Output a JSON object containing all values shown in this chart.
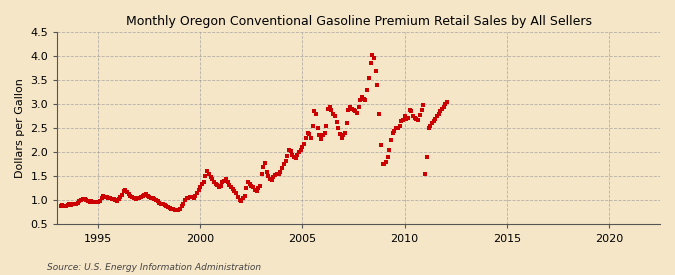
{
  "title": "Monthly Oregon Conventional Gasoline Premium Retail Sales by All Sellers",
  "ylabel": "Dollars per Gallon",
  "source": "Source: U.S. Energy Information Administration",
  "background_color": "#f5e6c8",
  "plot_bg_color": "#f5e6c8",
  "dot_color": "#cc0000",
  "ylim": [
    0.5,
    4.5
  ],
  "xlim_start": 1993.0,
  "xlim_end": 2022.5,
  "yticks": [
    0.5,
    1.0,
    1.5,
    2.0,
    2.5,
    3.0,
    3.5,
    4.0,
    4.5
  ],
  "xticks": [
    1995,
    2000,
    2005,
    2010,
    2015,
    2020
  ],
  "data": [
    [
      1993.17,
      0.88
    ],
    [
      1993.25,
      0.9
    ],
    [
      1993.33,
      0.89
    ],
    [
      1993.42,
      0.88
    ],
    [
      1993.5,
      0.91
    ],
    [
      1993.58,
      0.93
    ],
    [
      1993.67,
      0.9
    ],
    [
      1993.75,
      0.92
    ],
    [
      1993.83,
      0.93
    ],
    [
      1993.92,
      0.93
    ],
    [
      1994.0,
      0.95
    ],
    [
      1994.08,
      0.98
    ],
    [
      1994.17,
      1.01
    ],
    [
      1994.25,
      1.02
    ],
    [
      1994.33,
      1.03
    ],
    [
      1994.42,
      1.01
    ],
    [
      1994.5,
      0.99
    ],
    [
      1994.58,
      0.97
    ],
    [
      1994.67,
      0.98
    ],
    [
      1994.75,
      0.97
    ],
    [
      1994.83,
      0.97
    ],
    [
      1994.92,
      0.96
    ],
    [
      1995.0,
      0.96
    ],
    [
      1995.08,
      0.99
    ],
    [
      1995.17,
      1.05
    ],
    [
      1995.25,
      1.1
    ],
    [
      1995.33,
      1.08
    ],
    [
      1995.42,
      1.07
    ],
    [
      1995.5,
      1.06
    ],
    [
      1995.58,
      1.04
    ],
    [
      1995.67,
      1.03
    ],
    [
      1995.75,
      1.02
    ],
    [
      1995.83,
      1.0
    ],
    [
      1995.92,
      0.99
    ],
    [
      1996.0,
      1.02
    ],
    [
      1996.08,
      1.08
    ],
    [
      1996.17,
      1.12
    ],
    [
      1996.25,
      1.2
    ],
    [
      1996.33,
      1.22
    ],
    [
      1996.42,
      1.18
    ],
    [
      1996.5,
      1.13
    ],
    [
      1996.58,
      1.09
    ],
    [
      1996.67,
      1.08
    ],
    [
      1996.75,
      1.05
    ],
    [
      1996.83,
      1.03
    ],
    [
      1996.92,
      1.05
    ],
    [
      1997.0,
      1.05
    ],
    [
      1997.08,
      1.07
    ],
    [
      1997.17,
      1.1
    ],
    [
      1997.25,
      1.12
    ],
    [
      1997.33,
      1.13
    ],
    [
      1997.42,
      1.1
    ],
    [
      1997.5,
      1.08
    ],
    [
      1997.58,
      1.06
    ],
    [
      1997.67,
      1.05
    ],
    [
      1997.75,
      1.03
    ],
    [
      1997.83,
      1.0
    ],
    [
      1997.92,
      0.98
    ],
    [
      1998.0,
      0.95
    ],
    [
      1998.08,
      0.93
    ],
    [
      1998.17,
      0.92
    ],
    [
      1998.25,
      0.91
    ],
    [
      1998.33,
      0.88
    ],
    [
      1998.42,
      0.87
    ],
    [
      1998.5,
      0.84
    ],
    [
      1998.58,
      0.83
    ],
    [
      1998.67,
      0.82
    ],
    [
      1998.75,
      0.8
    ],
    [
      1998.83,
      0.8
    ],
    [
      1998.92,
      0.8
    ],
    [
      1999.0,
      0.83
    ],
    [
      1999.08,
      0.88
    ],
    [
      1999.17,
      0.93
    ],
    [
      1999.25,
      1.0
    ],
    [
      1999.33,
      1.05
    ],
    [
      1999.42,
      1.05
    ],
    [
      1999.5,
      1.07
    ],
    [
      1999.58,
      1.08
    ],
    [
      1999.67,
      1.06
    ],
    [
      1999.75,
      1.1
    ],
    [
      1999.83,
      1.15
    ],
    [
      1999.92,
      1.22
    ],
    [
      2000.0,
      1.28
    ],
    [
      2000.08,
      1.35
    ],
    [
      2000.17,
      1.38
    ],
    [
      2000.25,
      1.5
    ],
    [
      2000.33,
      1.62
    ],
    [
      2000.42,
      1.55
    ],
    [
      2000.5,
      1.48
    ],
    [
      2000.58,
      1.45
    ],
    [
      2000.67,
      1.38
    ],
    [
      2000.75,
      1.35
    ],
    [
      2000.83,
      1.32
    ],
    [
      2000.92,
      1.28
    ],
    [
      2001.0,
      1.3
    ],
    [
      2001.08,
      1.38
    ],
    [
      2001.17,
      1.4
    ],
    [
      2001.25,
      1.45
    ],
    [
      2001.33,
      1.38
    ],
    [
      2001.42,
      1.32
    ],
    [
      2001.5,
      1.28
    ],
    [
      2001.58,
      1.24
    ],
    [
      2001.67,
      1.2
    ],
    [
      2001.75,
      1.15
    ],
    [
      2001.83,
      1.08
    ],
    [
      2001.92,
      1.0
    ],
    [
      2002.0,
      0.98
    ],
    [
      2002.08,
      1.05
    ],
    [
      2002.17,
      1.1
    ],
    [
      2002.25,
      1.25
    ],
    [
      2002.33,
      1.38
    ],
    [
      2002.42,
      1.35
    ],
    [
      2002.5,
      1.3
    ],
    [
      2002.58,
      1.28
    ],
    [
      2002.67,
      1.22
    ],
    [
      2002.75,
      1.2
    ],
    [
      2002.83,
      1.25
    ],
    [
      2002.92,
      1.3
    ],
    [
      2003.0,
      1.55
    ],
    [
      2003.08,
      1.7
    ],
    [
      2003.17,
      1.78
    ],
    [
      2003.25,
      1.6
    ],
    [
      2003.33,
      1.5
    ],
    [
      2003.42,
      1.45
    ],
    [
      2003.5,
      1.42
    ],
    [
      2003.58,
      1.48
    ],
    [
      2003.67,
      1.52
    ],
    [
      2003.75,
      1.55
    ],
    [
      2003.83,
      1.55
    ],
    [
      2003.92,
      1.6
    ],
    [
      2004.0,
      1.68
    ],
    [
      2004.08,
      1.75
    ],
    [
      2004.17,
      1.82
    ],
    [
      2004.25,
      1.92
    ],
    [
      2004.33,
      2.05
    ],
    [
      2004.42,
      2.02
    ],
    [
      2004.5,
      1.95
    ],
    [
      2004.58,
      1.9
    ],
    [
      2004.67,
      1.88
    ],
    [
      2004.75,
      1.95
    ],
    [
      2004.83,
      2.0
    ],
    [
      2004.92,
      2.05
    ],
    [
      2005.0,
      2.1
    ],
    [
      2005.08,
      2.18
    ],
    [
      2005.17,
      2.3
    ],
    [
      2005.25,
      2.4
    ],
    [
      2005.33,
      2.38
    ],
    [
      2005.42,
      2.3
    ],
    [
      2005.5,
      2.55
    ],
    [
      2005.58,
      2.85
    ],
    [
      2005.67,
      2.8
    ],
    [
      2005.75,
      2.5
    ],
    [
      2005.83,
      2.35
    ],
    [
      2005.92,
      2.28
    ],
    [
      2006.0,
      2.35
    ],
    [
      2006.08,
      2.4
    ],
    [
      2006.17,
      2.55
    ],
    [
      2006.25,
      2.9
    ],
    [
      2006.33,
      2.95
    ],
    [
      2006.42,
      2.88
    ],
    [
      2006.5,
      2.8
    ],
    [
      2006.58,
      2.75
    ],
    [
      2006.67,
      2.62
    ],
    [
      2006.75,
      2.5
    ],
    [
      2006.83,
      2.38
    ],
    [
      2006.92,
      2.3
    ],
    [
      2007.0,
      2.35
    ],
    [
      2007.08,
      2.4
    ],
    [
      2007.17,
      2.6
    ],
    [
      2007.25,
      2.88
    ],
    [
      2007.33,
      2.95
    ],
    [
      2007.42,
      2.9
    ],
    [
      2007.5,
      2.88
    ],
    [
      2007.58,
      2.85
    ],
    [
      2007.67,
      2.82
    ],
    [
      2007.75,
      2.95
    ],
    [
      2007.83,
      3.08
    ],
    [
      2007.92,
      3.15
    ],
    [
      2008.0,
      3.1
    ],
    [
      2008.08,
      3.08
    ],
    [
      2008.17,
      3.3
    ],
    [
      2008.25,
      3.55
    ],
    [
      2008.33,
      3.85
    ],
    [
      2008.42,
      4.02
    ],
    [
      2008.5,
      3.95
    ],
    [
      2008.58,
      3.68
    ],
    [
      2008.67,
      3.4
    ],
    [
      2008.75,
      2.8
    ],
    [
      2008.83,
      2.15
    ],
    [
      2008.92,
      1.75
    ],
    [
      2009.0,
      1.75
    ],
    [
      2009.08,
      1.8
    ],
    [
      2009.17,
      1.9
    ],
    [
      2009.25,
      2.05
    ],
    [
      2009.33,
      2.25
    ],
    [
      2009.42,
      2.4
    ],
    [
      2009.5,
      2.45
    ],
    [
      2009.58,
      2.5
    ],
    [
      2009.67,
      2.5
    ],
    [
      2009.75,
      2.55
    ],
    [
      2009.83,
      2.65
    ],
    [
      2009.92,
      2.68
    ],
    [
      2010.0,
      2.75
    ],
    [
      2010.08,
      2.7
    ],
    [
      2010.17,
      2.72
    ],
    [
      2010.25,
      2.88
    ],
    [
      2010.33,
      2.85
    ],
    [
      2010.42,
      2.75
    ],
    [
      2010.5,
      2.72
    ],
    [
      2010.58,
      2.7
    ],
    [
      2010.67,
      2.68
    ],
    [
      2010.75,
      2.78
    ],
    [
      2010.83,
      2.88
    ],
    [
      2010.92,
      2.98
    ],
    [
      2011.0,
      1.55
    ],
    [
      2011.08,
      1.9
    ],
    [
      2011.17,
      2.5
    ],
    [
      2011.25,
      2.55
    ],
    [
      2011.33,
      2.6
    ],
    [
      2011.42,
      2.65
    ],
    [
      2011.5,
      2.7
    ],
    [
      2011.58,
      2.75
    ],
    [
      2011.67,
      2.8
    ],
    [
      2011.75,
      2.85
    ],
    [
      2011.83,
      2.9
    ],
    [
      2011.92,
      2.95
    ],
    [
      2012.0,
      3.0
    ],
    [
      2012.08,
      3.05
    ]
  ]
}
